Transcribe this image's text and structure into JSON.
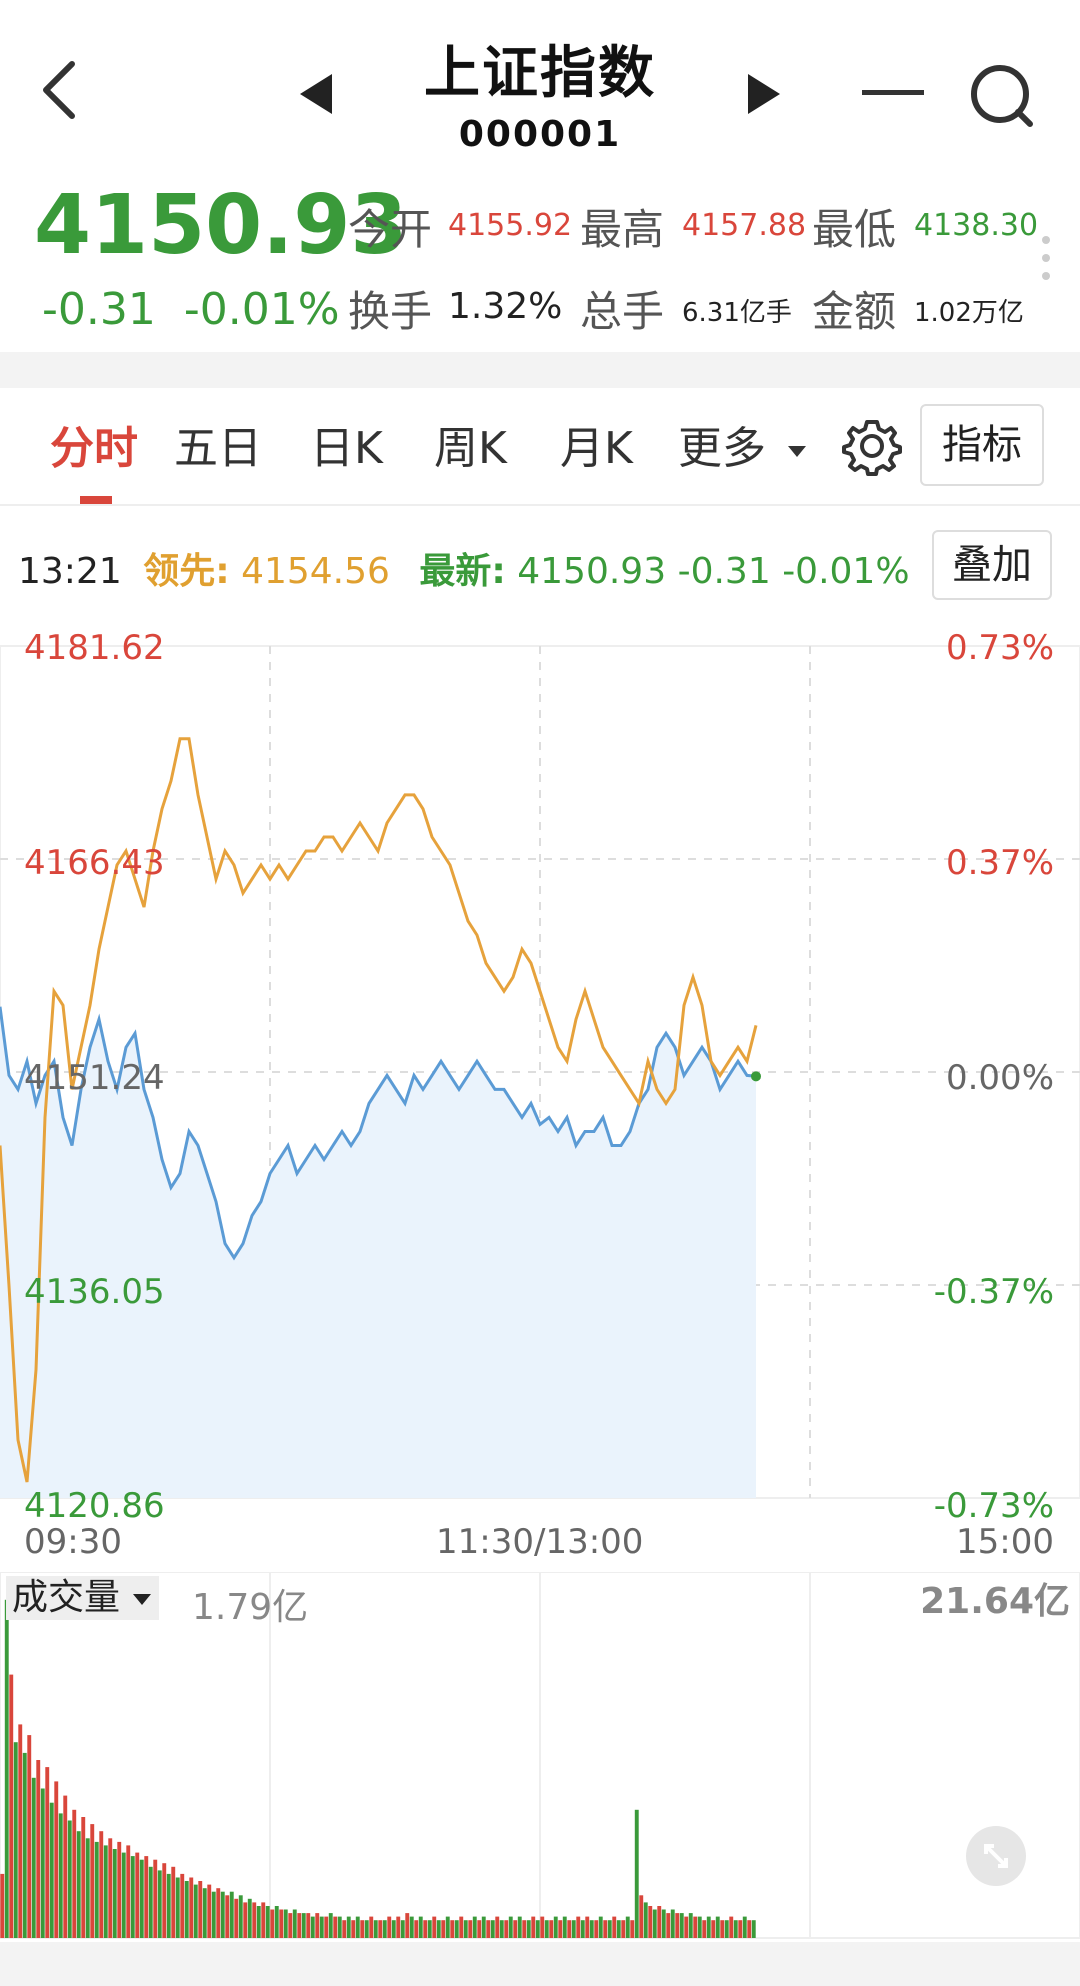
{
  "header": {
    "title": "上证指数",
    "code": "000001"
  },
  "quote": {
    "price": "4150.93",
    "change": "-0.31",
    "change_pct": "-0.01%",
    "open_label": "今开",
    "open_value": "4155.92",
    "high_label": "最高",
    "high_value": "4157.88",
    "low_label": "最低",
    "low_value": "4138.30",
    "turnover_label": "换手",
    "turnover_value": "1.32%",
    "volume_label": "总手",
    "volume_value": "6.31亿手",
    "amount_label": "金额",
    "amount_value": "1.02万亿"
  },
  "tabs": [
    "分时",
    "五日",
    "日K",
    "周K",
    "月K",
    "更多"
  ],
  "indicator_button": "指标",
  "overlay_button": "叠加",
  "info": {
    "time": "13:21",
    "lead_label": "领先:",
    "lead_value": "4154.56",
    "latest_label": "最新:",
    "latest_value": "4150.93",
    "latest_change": "-0.31",
    "latest_pct": "-0.01%"
  },
  "chart_data": {
    "type": "line",
    "y_ticks_left": [
      "4181.62",
      "4166.43",
      "4151.24",
      "4136.05",
      "4120.86"
    ],
    "y_ticks_right": [
      "0.73%",
      "0.37%",
      "0.00%",
      "-0.37%",
      "-0.73%"
    ],
    "ylim": [
      4120.86,
      4181.62
    ],
    "x_ticks": [
      "09:30",
      "11:30/13:00",
      "15:00"
    ],
    "total_minutes": 240,
    "series": [
      {
        "color": "#5b9bd5",
        "fill": "#eaf3fc",
        "points": [
          [
            0,
            4155.9
          ],
          [
            2,
            4151
          ],
          [
            4,
            4150
          ],
          [
            6,
            4152
          ],
          [
            8,
            4149
          ],
          [
            10,
            4151
          ],
          [
            12,
            4152
          ],
          [
            14,
            4148
          ],
          [
            16,
            4146
          ],
          [
            18,
            4150
          ],
          [
            20,
            4153
          ],
          [
            22,
            4155
          ],
          [
            24,
            4152
          ],
          [
            26,
            4150
          ],
          [
            28,
            4153
          ],
          [
            30,
            4154
          ],
          [
            32,
            4150
          ],
          [
            34,
            4148
          ],
          [
            36,
            4145
          ],
          [
            38,
            4143
          ],
          [
            40,
            4144
          ],
          [
            42,
            4147
          ],
          [
            44,
            4146
          ],
          [
            46,
            4144
          ],
          [
            48,
            4142
          ],
          [
            50,
            4139
          ],
          [
            52,
            4138
          ],
          [
            54,
            4139
          ],
          [
            56,
            4141
          ],
          [
            58,
            4142
          ],
          [
            60,
            4144
          ],
          [
            62,
            4145
          ],
          [
            64,
            4146
          ],
          [
            66,
            4144
          ],
          [
            68,
            4145
          ],
          [
            70,
            4146
          ],
          [
            72,
            4145
          ],
          [
            74,
            4146
          ],
          [
            76,
            4147
          ],
          [
            78,
            4146
          ],
          [
            80,
            4147
          ],
          [
            82,
            4149
          ],
          [
            84,
            4150
          ],
          [
            86,
            4151
          ],
          [
            88,
            4150
          ],
          [
            90,
            4149
          ],
          [
            92,
            4151
          ],
          [
            94,
            4150
          ],
          [
            96,
            4151
          ],
          [
            98,
            4152
          ],
          [
            100,
            4151
          ],
          [
            102,
            4150
          ],
          [
            104,
            4151
          ],
          [
            106,
            4152
          ],
          [
            108,
            4151
          ],
          [
            110,
            4150
          ],
          [
            112,
            4150
          ],
          [
            114,
            4149
          ],
          [
            116,
            4148
          ],
          [
            118,
            4149
          ],
          [
            120,
            4147.5
          ],
          [
            122,
            4148
          ],
          [
            124,
            4147
          ],
          [
            126,
            4148
          ],
          [
            128,
            4146
          ],
          [
            130,
            4147
          ],
          [
            132,
            4147
          ],
          [
            134,
            4148
          ],
          [
            136,
            4146
          ],
          [
            138,
            4146
          ],
          [
            140,
            4147
          ],
          [
            142,
            4149
          ],
          [
            144,
            4150
          ],
          [
            146,
            4153
          ],
          [
            148,
            4154
          ],
          [
            150,
            4153
          ],
          [
            152,
            4151
          ],
          [
            154,
            4152
          ],
          [
            156,
            4153
          ],
          [
            158,
            4152
          ],
          [
            160,
            4150
          ],
          [
            162,
            4151
          ],
          [
            164,
            4152
          ],
          [
            166,
            4151
          ],
          [
            168,
            4150.93
          ]
        ]
      },
      {
        "color": "#e6a23c",
        "points": [
          [
            0,
            4146
          ],
          [
            2,
            4136
          ],
          [
            4,
            4125
          ],
          [
            6,
            4122
          ],
          [
            8,
            4130
          ],
          [
            10,
            4148
          ],
          [
            12,
            4157
          ],
          [
            14,
            4156
          ],
          [
            16,
            4150
          ],
          [
            18,
            4153
          ],
          [
            20,
            4156
          ],
          [
            22,
            4160
          ],
          [
            24,
            4163
          ],
          [
            26,
            4166
          ],
          [
            28,
            4167
          ],
          [
            30,
            4165
          ],
          [
            32,
            4163
          ],
          [
            34,
            4167
          ],
          [
            36,
            4170
          ],
          [
            38,
            4172
          ],
          [
            40,
            4175
          ],
          [
            42,
            4175
          ],
          [
            44,
            4171
          ],
          [
            46,
            4168
          ],
          [
            48,
            4165
          ],
          [
            50,
            4167
          ],
          [
            52,
            4166
          ],
          [
            54,
            4164
          ],
          [
            56,
            4165
          ],
          [
            58,
            4166
          ],
          [
            60,
            4165
          ],
          [
            62,
            4166
          ],
          [
            64,
            4165
          ],
          [
            66,
            4166
          ],
          [
            68,
            4167
          ],
          [
            70,
            4167
          ],
          [
            72,
            4168
          ],
          [
            74,
            4168
          ],
          [
            76,
            4167
          ],
          [
            78,
            4168
          ],
          [
            80,
            4169
          ],
          [
            82,
            4168
          ],
          [
            84,
            4167
          ],
          [
            86,
            4169
          ],
          [
            88,
            4170
          ],
          [
            90,
            4171
          ],
          [
            92,
            4171
          ],
          [
            94,
            4170
          ],
          [
            96,
            4168
          ],
          [
            98,
            4167
          ],
          [
            100,
            4166
          ],
          [
            102,
            4164
          ],
          [
            104,
            4162
          ],
          [
            106,
            4161
          ],
          [
            108,
            4159
          ],
          [
            110,
            4158
          ],
          [
            112,
            4157
          ],
          [
            114,
            4158
          ],
          [
            116,
            4160
          ],
          [
            118,
            4159
          ],
          [
            120,
            4157
          ],
          [
            122,
            4155
          ],
          [
            124,
            4153
          ],
          [
            126,
            4152
          ],
          [
            128,
            4155
          ],
          [
            130,
            4157
          ],
          [
            132,
            4155
          ],
          [
            134,
            4153
          ],
          [
            136,
            4152
          ],
          [
            138,
            4151
          ],
          [
            140,
            4150
          ],
          [
            142,
            4149
          ],
          [
            144,
            4152
          ],
          [
            146,
            4150
          ],
          [
            148,
            4149
          ],
          [
            150,
            4150
          ],
          [
            152,
            4156
          ],
          [
            154,
            4158
          ],
          [
            156,
            4156
          ],
          [
            158,
            4152
          ],
          [
            160,
            4151
          ],
          [
            162,
            4152
          ],
          [
            164,
            4153
          ],
          [
            166,
            4152
          ],
          [
            168,
            4154.56
          ]
        ]
      }
    ]
  },
  "volume": {
    "label": "成交量",
    "current_value": "1.79亿",
    "max_value": "21.64亿",
    "bars": [
      0.18,
      0.95,
      0.74,
      0.55,
      0.6,
      0.52,
      0.57,
      0.45,
      0.5,
      0.42,
      0.48,
      0.38,
      0.44,
      0.35,
      0.4,
      0.33,
      0.36,
      0.3,
      0.34,
      0.28,
      0.32,
      0.27,
      0.3,
      0.26,
      0.28,
      0.25,
      0.27,
      0.24,
      0.26,
      0.23,
      0.24,
      0.22,
      0.23,
      0.2,
      0.22,
      0.19,
      0.21,
      0.18,
      0.2,
      0.17,
      0.18,
      0.16,
      0.17,
      0.15,
      0.16,
      0.14,
      0.15,
      0.13,
      0.14,
      0.13,
      0.12,
      0.13,
      0.11,
      0.12,
      0.1,
      0.11,
      0.1,
      0.09,
      0.1,
      0.09,
      0.08,
      0.09,
      0.08,
      0.08,
      0.07,
      0.08,
      0.07,
      0.07,
      0.07,
      0.06,
      0.07,
      0.06,
      0.06,
      0.07,
      0.06,
      0.06,
      0.05,
      0.06,
      0.05,
      0.06,
      0.05,
      0.05,
      0.06,
      0.05,
      0.05,
      0.05,
      0.06,
      0.05,
      0.06,
      0.05,
      0.07,
      0.06,
      0.05,
      0.06,
      0.05,
      0.05,
      0.06,
      0.05,
      0.05,
      0.06,
      0.05,
      0.05,
      0.06,
      0.05,
      0.05,
      0.06,
      0.05,
      0.06,
      0.05,
      0.05,
      0.06,
      0.05,
      0.05,
      0.06,
      0.05,
      0.06,
      0.05,
      0.05,
      0.06,
      0.05,
      0.06,
      0.05,
      0.05,
      0.06,
      0.05,
      0.06,
      0.05,
      0.05,
      0.06,
      0.05,
      0.06,
      0.05,
      0.05,
      0.06,
      0.05,
      0.05,
      0.06,
      0.05,
      0.05,
      0.06,
      0.05,
      0.36,
      0.12,
      0.1,
      0.09,
      0.08,
      0.09,
      0.08,
      0.07,
      0.08,
      0.07,
      0.07,
      0.06,
      0.07,
      0.06,
      0.06,
      0.05,
      0.06,
      0.05,
      0.06,
      0.05,
      0.05,
      0.06,
      0.05,
      0.05,
      0.06,
      0.05,
      0.05
    ],
    "bar_colors": [
      "#d9463b",
      "#3a9a3a"
    ]
  }
}
